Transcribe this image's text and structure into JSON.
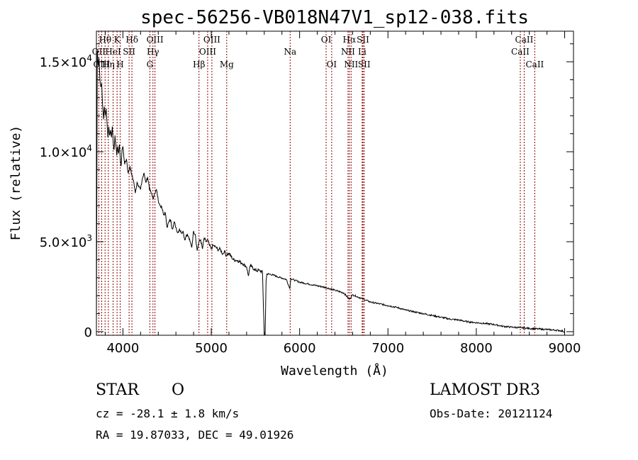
{
  "chart_data": {
    "type": "line",
    "title": "spec-56256-VB018N47V1_sp12-038.fits",
    "xlabel": "Wavelength (Å)",
    "ylabel": "Flux (relative)",
    "xlim": [
      3700,
      9100
    ],
    "ylim": [
      -200,
      16700
    ],
    "xticks": [
      4000,
      5000,
      6000,
      7000,
      8000,
      9000
    ],
    "xtick_labels": [
      "4000",
      "5000",
      "6000",
      "7000",
      "8000",
      "9000"
    ],
    "yticks": [
      0,
      5000,
      10000,
      15000
    ],
    "ytick_labels": [
      {
        "mantissa": "0",
        "exp": ""
      },
      {
        "mantissa": "5.0×10",
        "exp": "3"
      },
      {
        "mantissa": "1.0×10",
        "exp": "4"
      },
      {
        "mantissa": "1.5×10",
        "exp": "4"
      }
    ],
    "series": [
      {
        "name": "spectrum",
        "x": [
          3700,
          3710,
          3720,
          3730,
          3740,
          3750,
          3760,
          3770,
          3780,
          3790,
          3800,
          3810,
          3820,
          3830,
          3840,
          3850,
          3860,
          3870,
          3880,
          3890,
          3900,
          3910,
          3920,
          3930,
          3940,
          3950,
          3960,
          3970,
          3980,
          3990,
          4000,
          4020,
          4040,
          4060,
          4080,
          4100,
          4120,
          4140,
          4160,
          4180,
          4200,
          4220,
          4240,
          4260,
          4280,
          4300,
          4320,
          4340,
          4360,
          4380,
          4400,
          4420,
          4440,
          4460,
          4480,
          4500,
          4520,
          4540,
          4560,
          4580,
          4600,
          4620,
          4640,
          4660,
          4680,
          4700,
          4720,
          4740,
          4760,
          4780,
          4800,
          4820,
          4840,
          4861,
          4880,
          4900,
          4920,
          4940,
          4960,
          4980,
          5000,
          5020,
          5050,
          5080,
          5100,
          5130,
          5150,
          5170,
          5180,
          5200,
          5250,
          5300,
          5350,
          5400,
          5420,
          5440,
          5460,
          5500,
          5550,
          5580,
          5590,
          5600,
          5610,
          5620,
          5630,
          5650,
          5700,
          5750,
          5800,
          5850,
          5890,
          5900,
          5950,
          6000,
          6100,
          6200,
          6300,
          6400,
          6500,
          6563,
          6600,
          6700,
          6800,
          6900,
          7000,
          7100,
          7200,
          7300,
          7400,
          7500,
          7600,
          7700,
          7800,
          7900,
          8000,
          8100,
          8200,
          8300,
          8400,
          8500,
          8600,
          8700,
          8800,
          8900,
          8950,
          9000
        ],
        "values": [
          100,
          15600,
          14800,
          15200,
          14000,
          13600,
          13800,
          12600,
          11800,
          12500,
          12000,
          12400,
          11600,
          10800,
          11400,
          10900,
          11200,
          10800,
          11400,
          10500,
          10100,
          10900,
          10400,
          9800,
          10300,
          9900,
          10400,
          9600,
          9200,
          10100,
          10300,
          9300,
          9600,
          8800,
          9200,
          8700,
          8400,
          7700,
          8300,
          8100,
          7900,
          8500,
          8800,
          8300,
          8600,
          7900,
          7700,
          7400,
          7700,
          7900,
          7300,
          7000,
          6900,
          6500,
          6600,
          5800,
          6100,
          6200,
          5700,
          6100,
          5800,
          5500,
          5700,
          5500,
          5600,
          5100,
          5400,
          5300,
          5000,
          4700,
          5600,
          5400,
          4500,
          5000,
          5100,
          4600,
          5200,
          5000,
          5100,
          4800,
          4600,
          4800,
          4700,
          4550,
          4600,
          4300,
          4500,
          4200,
          4300,
          4350,
          4000,
          3950,
          3800,
          3600,
          3100,
          3650,
          3600,
          3400,
          3400,
          3300,
          1500,
          -200,
          -200,
          2800,
          3200,
          3200,
          3150,
          3050,
          2980,
          2900,
          2400,
          2950,
          2850,
          2750,
          2650,
          2550,
          2450,
          2300,
          2150,
          1800,
          2050,
          1850,
          1650,
          1550,
          1450,
          1350,
          1200,
          1100,
          1000,
          900,
          800,
          700,
          650,
          550,
          500,
          450,
          400,
          300,
          250,
          220,
          180,
          150,
          120,
          80,
          60,
          0
        ]
      }
    ],
    "lines": [
      {
        "label": "Hθ",
        "wave": 3798,
        "row": 1
      },
      {
        "label": "OII",
        "wave": 3727,
        "row": 2
      },
      {
        "label": "OIII",
        "wave": 3760,
        "row": 3
      },
      {
        "label": "K",
        "wave": 3934,
        "row": 1
      },
      {
        "label": "HeI",
        "wave": 3889,
        "row": 2
      },
      {
        "label": "Hη",
        "wave": 3835,
        "row": 3
      },
      {
        "label": "SII",
        "wave": 4070,
        "row": 2
      },
      {
        "label": "H",
        "wave": 3969,
        "row": 3
      },
      {
        "label": "Hδ",
        "wave": 4102,
        "row": 1
      },
      {
        "label": "OIII",
        "wave": 4363,
        "row": 1
      },
      {
        "label": "Hγ",
        "wave": 4340,
        "row": 2
      },
      {
        "label": "G",
        "wave": 4305,
        "row": 3
      },
      {
        "label": "OIII",
        "wave": 5007,
        "row": 1
      },
      {
        "label": "OIII",
        "wave": 4959,
        "row": 2
      },
      {
        "label": "Hβ",
        "wave": 4861,
        "row": 3
      },
      {
        "label": "Mg",
        "wave": 5175,
        "row": 3
      },
      {
        "label": "Na",
        "wave": 5893,
        "row": 2
      },
      {
        "label": "OI",
        "wave": 6300,
        "row": 1
      },
      {
        "label": "OI",
        "wave": 6363,
        "row": 3
      },
      {
        "label": "Hα",
        "wave": 6563,
        "row": 1
      },
      {
        "label": "NII",
        "wave": 6548,
        "row": 2
      },
      {
        "label": "NII",
        "wave": 6583,
        "row": 3
      },
      {
        "label": "SII",
        "wave": 6717,
        "row": 1
      },
      {
        "label": "Li",
        "wave": 6708,
        "row": 2
      },
      {
        "label": "SII",
        "wave": 6731,
        "row": 3
      },
      {
        "label": "CaII",
        "wave": 8542,
        "row": 1
      },
      {
        "label": "CaII",
        "wave": 8498,
        "row": 2
      },
      {
        "label": "CaII",
        "wave": 8662,
        "row": 3
      }
    ],
    "line_color": "#8b0000"
  },
  "info": {
    "object_class": "STAR",
    "subclass": "O",
    "survey": "LAMOST DR3",
    "cz": "cz = -28.1 ± 1.8 km/s",
    "obs_date": "Obs-Date: 20121124",
    "coords": "RA =  19.87033, DEC =  49.01926"
  }
}
